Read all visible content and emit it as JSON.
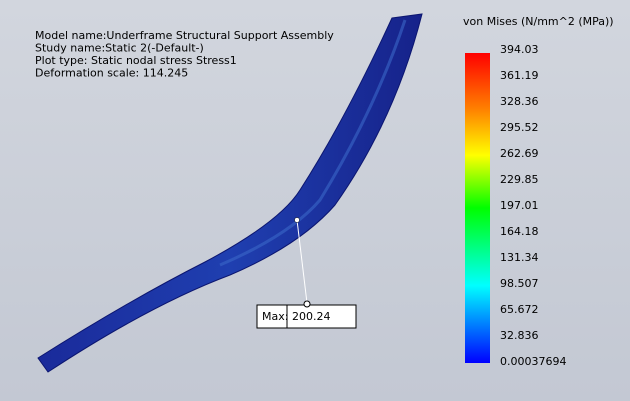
{
  "info": [
    "Model name:Underframe Structural Support Assembly",
    "Study name:Static 2(-Default-)",
    "Plot type: Static nodal stress Stress1",
    "Deformation scale: 114.245"
  ],
  "legend": {
    "title": "von Mises (N/mm^2 (MPa))",
    "labels": [
      "394.03",
      "361.19",
      "328.36",
      "295.52",
      "262.69",
      "229.85",
      "197.01",
      "164.18",
      "131.34",
      "98.507",
      "65.672",
      "32.836",
      "0.00037694"
    ]
  },
  "max_label": {
    "caption": "Max:",
    "value": "200.24"
  }
}
